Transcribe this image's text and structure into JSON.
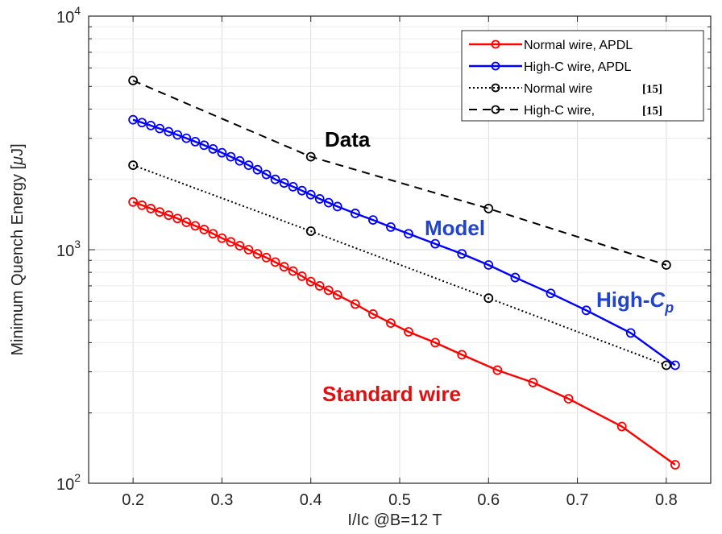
{
  "chart_data": {
    "type": "line",
    "xlabel": "I/Ic @B=12 T",
    "ylabel": "Minimum Quench Energy [",
    "ylabel_mu": "μ",
    "ylabel_unit": "J]",
    "xlim": [
      0.15,
      0.85
    ],
    "ylim": [
      100,
      10000
    ],
    "yscale": "log",
    "grid": true,
    "x_ticks": [
      "0.2",
      "0.3",
      "0.4",
      "0.5",
      "0.6",
      "0.7",
      "0.8"
    ],
    "x_tick_values": [
      0.2,
      0.3,
      0.4,
      0.5,
      0.6,
      0.7,
      0.8
    ],
    "y_ticks": [
      {
        "value": 100,
        "base": "10",
        "exp": "2"
      },
      {
        "value": 1000,
        "base": "10",
        "exp": "3"
      },
      {
        "value": 10000,
        "base": "10",
        "exp": "4"
      }
    ],
    "legend_position": "top-right",
    "series": [
      {
        "name": "Normal wire, APDL",
        "color": "#ff0000",
        "style": "solid",
        "x": [
          0.2,
          0.21,
          0.22,
          0.23,
          0.24,
          0.25,
          0.26,
          0.27,
          0.28,
          0.29,
          0.3,
          0.31,
          0.32,
          0.33,
          0.34,
          0.35,
          0.36,
          0.37,
          0.38,
          0.39,
          0.4,
          0.41,
          0.42,
          0.43,
          0.45,
          0.47,
          0.49,
          0.51,
          0.54,
          0.57,
          0.61,
          0.65,
          0.69,
          0.75,
          0.81
        ],
        "y": [
          1600,
          1550,
          1500,
          1450,
          1405,
          1360,
          1310,
          1265,
          1220,
          1170,
          1120,
          1080,
          1040,
          1000,
          960,
          925,
          885,
          845,
          810,
          770,
          730,
          700,
          670,
          640,
          585,
          530,
          485,
          445,
          400,
          355,
          305,
          270,
          230,
          175,
          120
        ]
      },
      {
        "name": "High-C wire, APDL",
        "color": "#0000ff",
        "style": "solid",
        "x": [
          0.2,
          0.21,
          0.22,
          0.23,
          0.24,
          0.25,
          0.26,
          0.27,
          0.28,
          0.29,
          0.3,
          0.31,
          0.32,
          0.33,
          0.34,
          0.35,
          0.36,
          0.37,
          0.38,
          0.39,
          0.4,
          0.41,
          0.42,
          0.43,
          0.45,
          0.47,
          0.49,
          0.51,
          0.54,
          0.57,
          0.6,
          0.63,
          0.67,
          0.71,
          0.76,
          0.81
        ],
        "y": [
          3600,
          3500,
          3400,
          3300,
          3200,
          3100,
          3000,
          2900,
          2800,
          2700,
          2600,
          2500,
          2400,
          2300,
          2200,
          2100,
          2000,
          1930,
          1860,
          1790,
          1720,
          1650,
          1590,
          1530,
          1430,
          1340,
          1250,
          1170,
          1060,
          960,
          860,
          760,
          650,
          550,
          440,
          320
        ]
      },
      {
        "name": "Normal wire",
        "ref": "[15]",
        "color": "#000000",
        "style": "dotted",
        "x": [
          0.2,
          0.4,
          0.6,
          0.8
        ],
        "y": [
          2300,
          1200,
          620,
          320
        ]
      },
      {
        "name": "High-C wire,",
        "ref": "[15]",
        "color": "#000000",
        "style": "dashed",
        "x": [
          0.2,
          0.4,
          0.6,
          0.8
        ],
        "y": [
          5300,
          2500,
          1500,
          860
        ]
      }
    ],
    "annotations": [
      {
        "text": "Data",
        "color": "#000000"
      },
      {
        "text": "Model",
        "color": "#2244cc"
      },
      {
        "text": "High-",
        "sub_italic": "C",
        "sub": "p",
        "color": "#2244cc"
      },
      {
        "text": "Standard wire",
        "color": "#e01010"
      }
    ]
  }
}
